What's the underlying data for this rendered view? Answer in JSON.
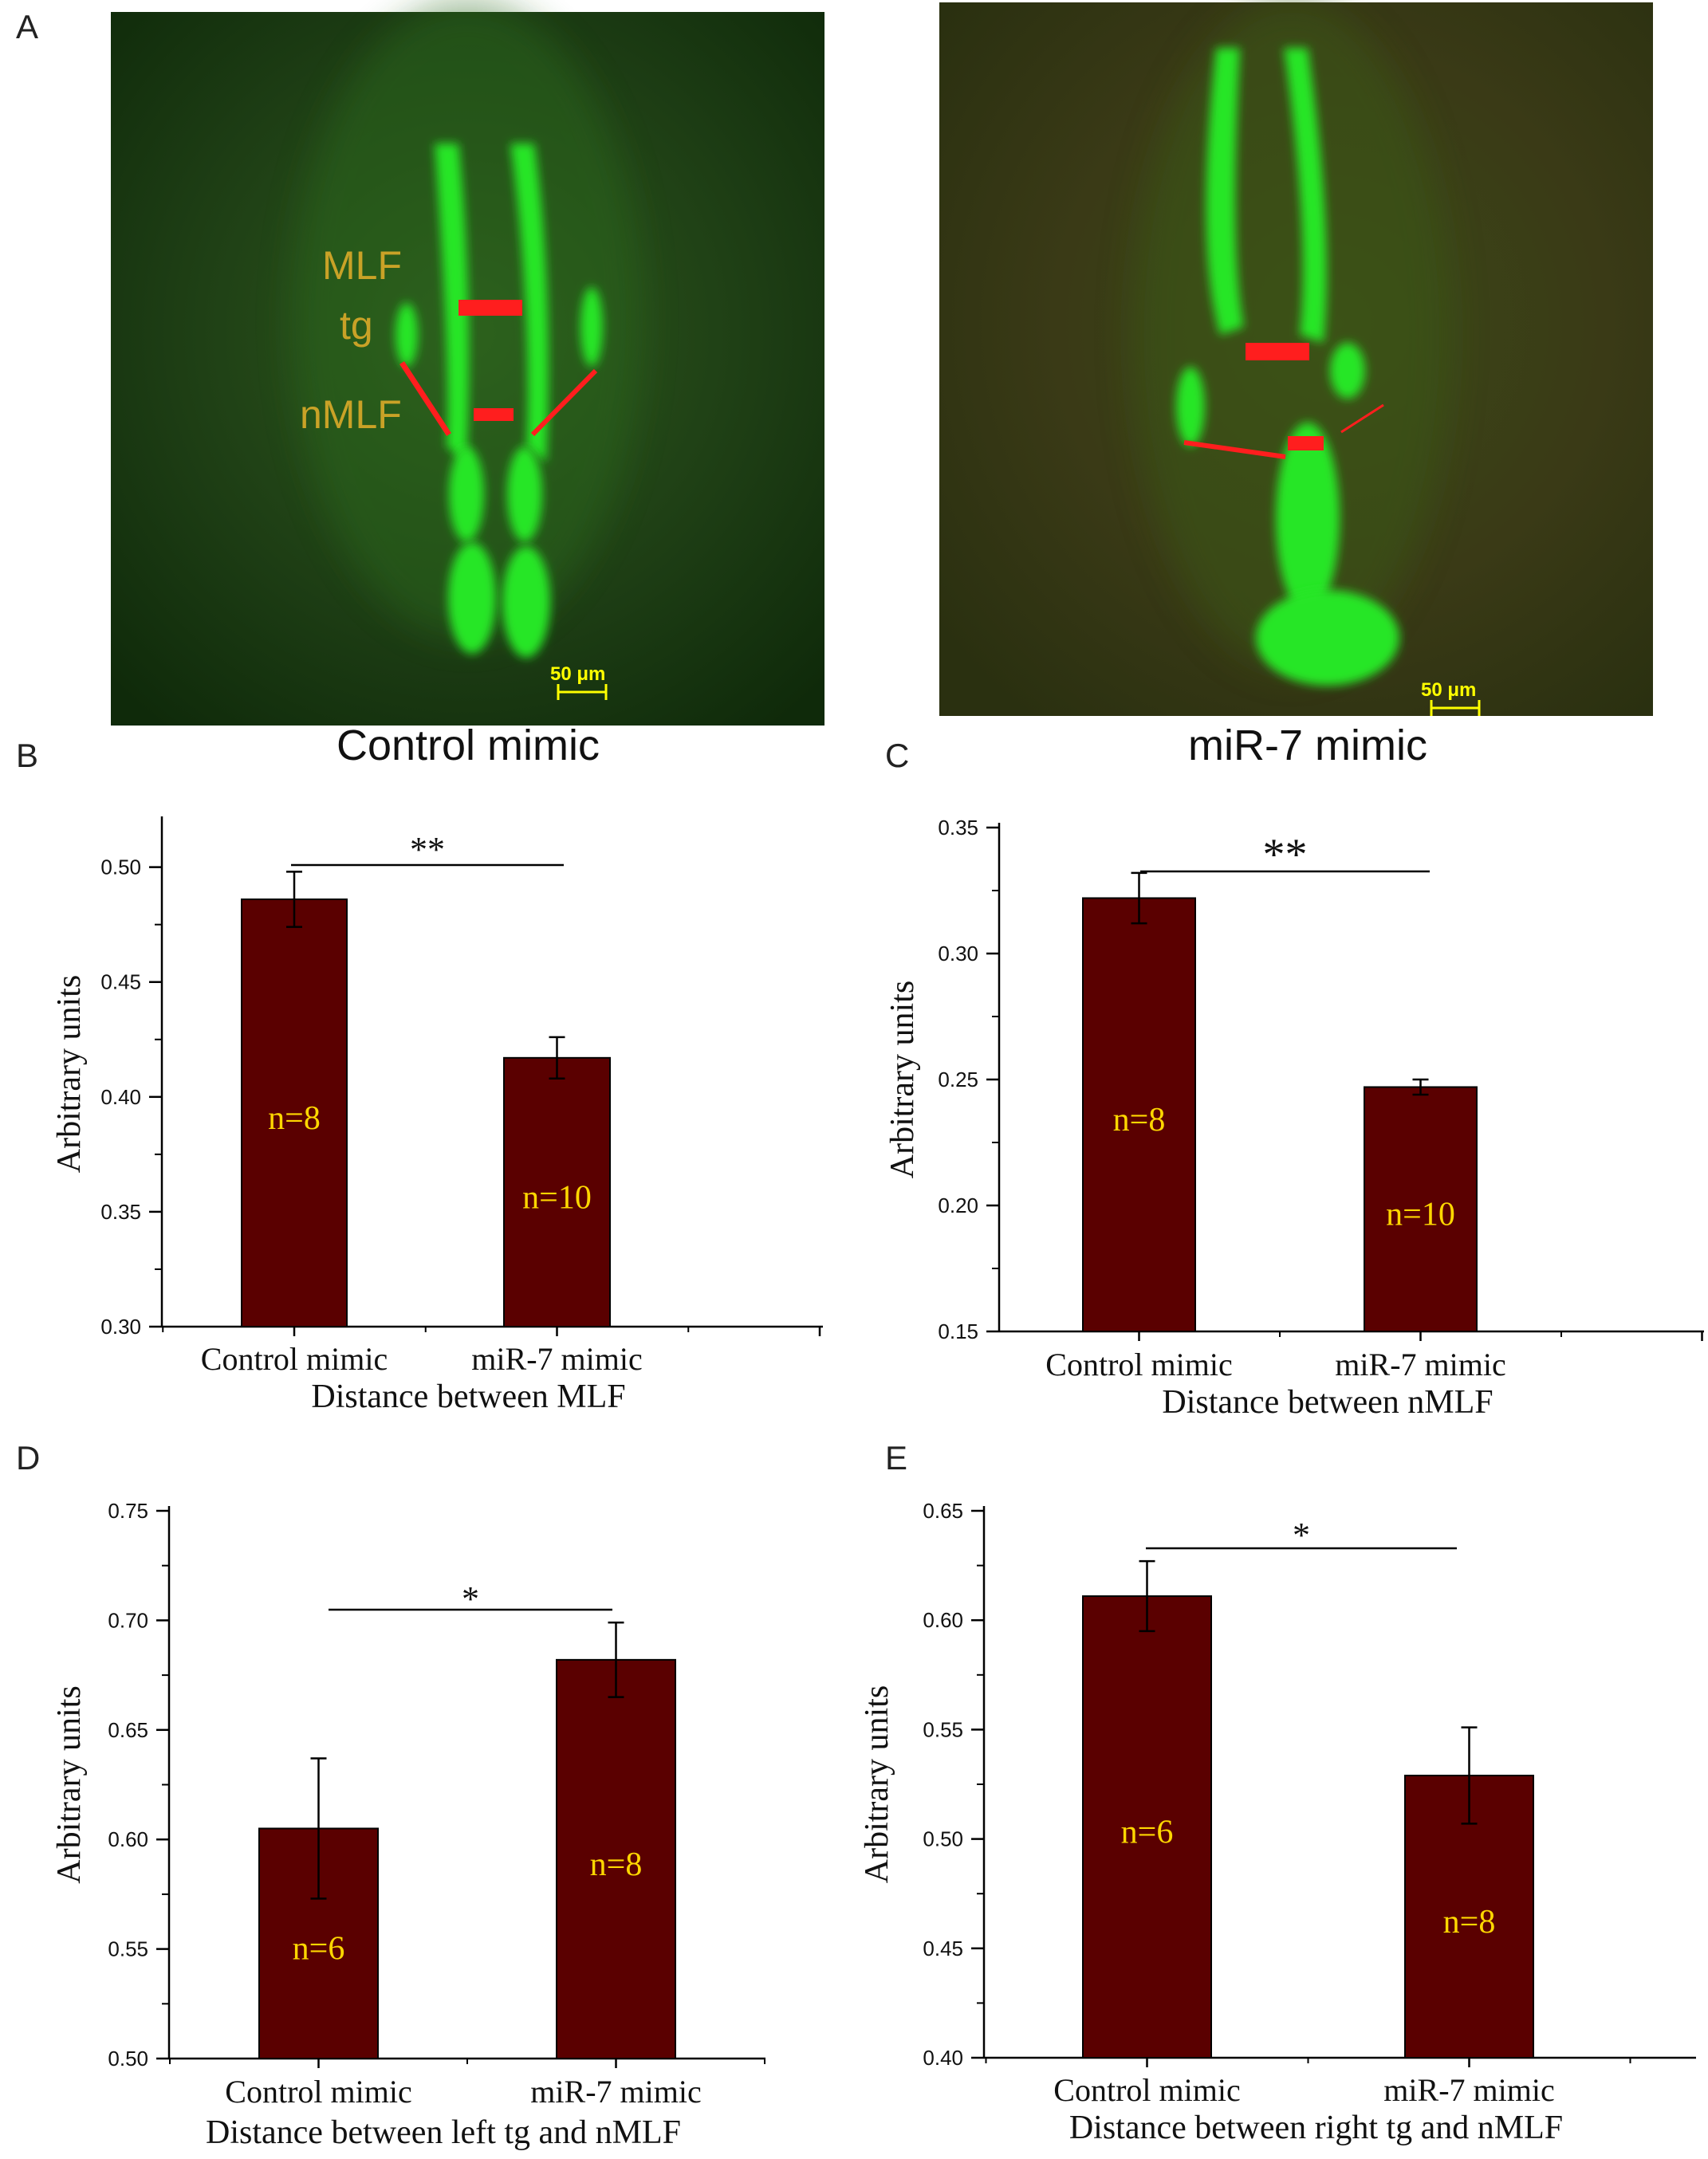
{
  "panel_letters": {
    "a": "A",
    "b": "B",
    "c": "C",
    "d": "D",
    "e": "E"
  },
  "images": [
    {
      "caption": "Control mimic",
      "labels": [
        "MLF",
        "tg",
        "nMLF"
      ],
      "scale_bar": "50 μm",
      "colors": {
        "fluorescence": "#27e627",
        "background": "#1c3a14",
        "marker": "#ff1e1e",
        "label": "#c9a227",
        "scale": "#ffff00"
      }
    },
    {
      "caption": "miR-7 mimic",
      "labels": [],
      "scale_bar": "50 μm",
      "colors": {
        "fluorescence": "#27e627",
        "background": "#3a3a16",
        "marker": "#ff1e1e",
        "scale": "#ffff00"
      }
    }
  ],
  "chart_data": [
    {
      "panel": "B",
      "type": "bar",
      "categories": [
        "Control mimic",
        "miR-7 mimic"
      ],
      "values": [
        0.486,
        0.417
      ],
      "errors": [
        0.012,
        0.009
      ],
      "bar_labels": [
        "n=8",
        "n=10"
      ],
      "significance": "**",
      "xlabel": "Distance between MLF",
      "ylabel": "Arbitrary units",
      "ylim": [
        0.3,
        0.52
      ],
      "yticks": [
        "0.30",
        "0.35",
        "0.40",
        "0.45",
        "0.50"
      ],
      "bar_color": "#5a0000",
      "label_color": "#ffd700"
    },
    {
      "panel": "C",
      "type": "bar",
      "categories": [
        "Control mimic",
        "miR-7 mimic"
      ],
      "values": [
        0.322,
        0.247
      ],
      "errors": [
        0.01,
        0.003
      ],
      "bar_labels": [
        "n=8",
        "n=10"
      ],
      "significance": "**",
      "xlabel": "Distance between nMLF",
      "ylabel": "Arbitrary units",
      "ylim": [
        0.15,
        0.35
      ],
      "yticks": [
        "0.15",
        "0.20",
        "0.25",
        "0.30",
        "0.35"
      ],
      "bar_color": "#5a0000",
      "label_color": "#ffd700"
    },
    {
      "panel": "D",
      "type": "bar",
      "categories": [
        "Control mimic",
        "miR-7 mimic"
      ],
      "values": [
        0.605,
        0.682
      ],
      "errors": [
        0.032,
        0.017
      ],
      "bar_labels": [
        "n=6",
        "n=8"
      ],
      "significance": "*",
      "xlabel": "Distance between left tg and nMLF",
      "ylabel": "Arbitrary units",
      "ylim": [
        0.5,
        0.75
      ],
      "yticks": [
        "0.50",
        "0.55",
        "0.60",
        "0.65",
        "0.70",
        "0.75"
      ],
      "bar_color": "#5a0000",
      "label_color": "#ffd700"
    },
    {
      "panel": "E",
      "type": "bar",
      "categories": [
        "Control mimic",
        "miR-7 mimic"
      ],
      "values": [
        0.611,
        0.529
      ],
      "errors": [
        0.016,
        0.022
      ],
      "bar_labels": [
        "n=6",
        "n=8"
      ],
      "significance": "*",
      "xlabel": "Distance between right tg and nMLF",
      "ylabel": "Arbitrary units",
      "ylim": [
        0.4,
        0.65
      ],
      "yticks": [
        "0.40",
        "0.45",
        "0.50",
        "0.55",
        "0.60",
        "0.65"
      ],
      "bar_color": "#5a0000",
      "label_color": "#ffd700"
    }
  ]
}
